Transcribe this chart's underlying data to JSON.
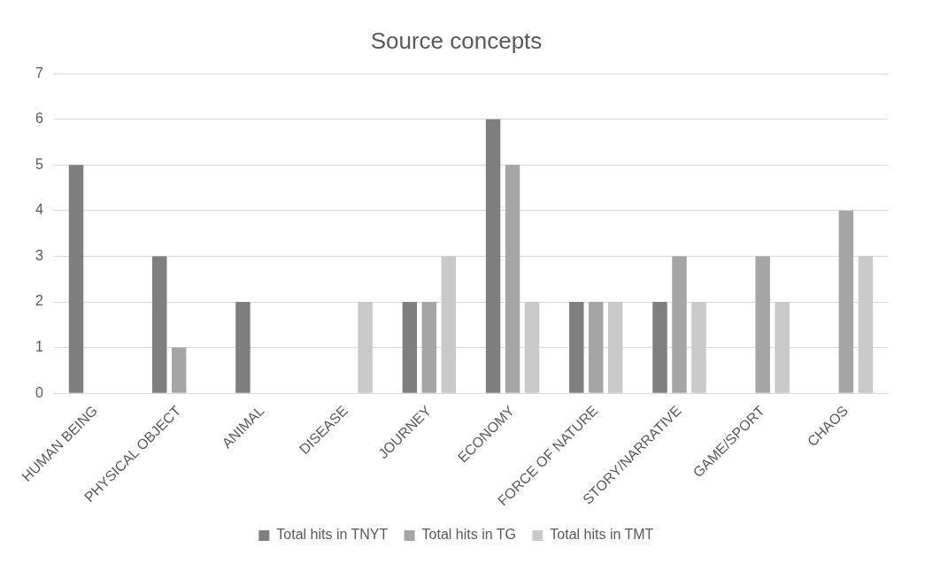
{
  "chart_data": {
    "type": "bar",
    "title": "Source concepts",
    "categories": [
      "HUMAN BEING",
      "PHYSICAL OBJECT",
      "ANIMAL",
      "DISEASE",
      "JOURNEY",
      "ECONOMY",
      "FORCE OF NATURE",
      "STORY/NARRATIVE",
      "GAME/SPORT",
      "CHAOS"
    ],
    "series": [
      {
        "name": "Total hits in TNYT",
        "color": "#7f7f7f",
        "values": [
          5,
          3,
          2,
          0,
          2,
          6,
          2,
          2,
          0,
          0
        ]
      },
      {
        "name": "Total hits in TG",
        "color": "#a5a5a5",
        "values": [
          0,
          1,
          0,
          0,
          2,
          5,
          2,
          3,
          3,
          4
        ]
      },
      {
        "name": "Total hits in TMT",
        "color": "#c9c9c9",
        "values": [
          0,
          0,
          0,
          2,
          3,
          2,
          2,
          2,
          2,
          3
        ]
      }
    ],
    "ylim": [
      0,
      7
    ],
    "yticks": [
      0,
      1,
      2,
      3,
      4,
      5,
      6,
      7
    ],
    "grid": "y",
    "legend": "bottom"
  }
}
